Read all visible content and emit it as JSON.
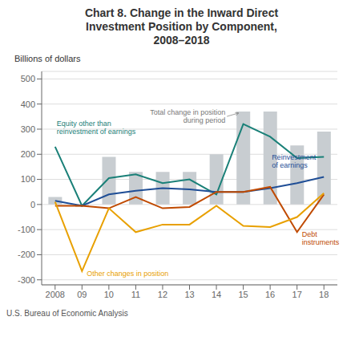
{
  "chart_data": {
    "type": "bar",
    "title": "Chart 8. Change in the Inward Direct\nInvestment Position by Component,\n2008–2018",
    "ylabel": "Billions of dollars",
    "annotations": [
      "U.S. Bureau of Economic Analysis"
    ],
    "categories": [
      "2008",
      "09",
      "10",
      "11",
      "12",
      "13",
      "14",
      "15",
      "16",
      "17",
      "18"
    ],
    "series": [
      {
        "name": "Total change in position\nduring period",
        "type": "bar",
        "color": "#c8cdd1",
        "values": [
          30,
          -10,
          190,
          130,
          130,
          130,
          200,
          370,
          370,
          235,
          290
        ]
      },
      {
        "name": "Equity other than\nreinvestment of earnings",
        "type": "line",
        "color": "#1a8078",
        "values": [
          230,
          -5,
          105,
          120,
          85,
          100,
          40,
          320,
          270,
          185,
          190
        ]
      },
      {
        "name": "Reinvestment\nof earnings",
        "type": "line",
        "color": "#1f4e96",
        "values": [
          15,
          -5,
          40,
          55,
          65,
          60,
          50,
          50,
          65,
          85,
          110
        ]
      },
      {
        "name": "Debt\ninstruments",
        "type": "line",
        "color": "#c04a00",
        "values": [
          -5,
          -5,
          -15,
          30,
          -15,
          -10,
          50,
          50,
          70,
          -110,
          40
        ]
      },
      {
        "name": "Other changes in position",
        "type": "line",
        "color": "#e8a000",
        "values": [
          10,
          -265,
          -15,
          -110,
          -80,
          -80,
          -5,
          -85,
          -90,
          -50,
          45
        ]
      }
    ],
    "ylim": [
      -320,
      530
    ],
    "yticks": [
      -300,
      -200,
      -100,
      0,
      100,
      200,
      300,
      400,
      500
    ],
    "grid": true
  }
}
